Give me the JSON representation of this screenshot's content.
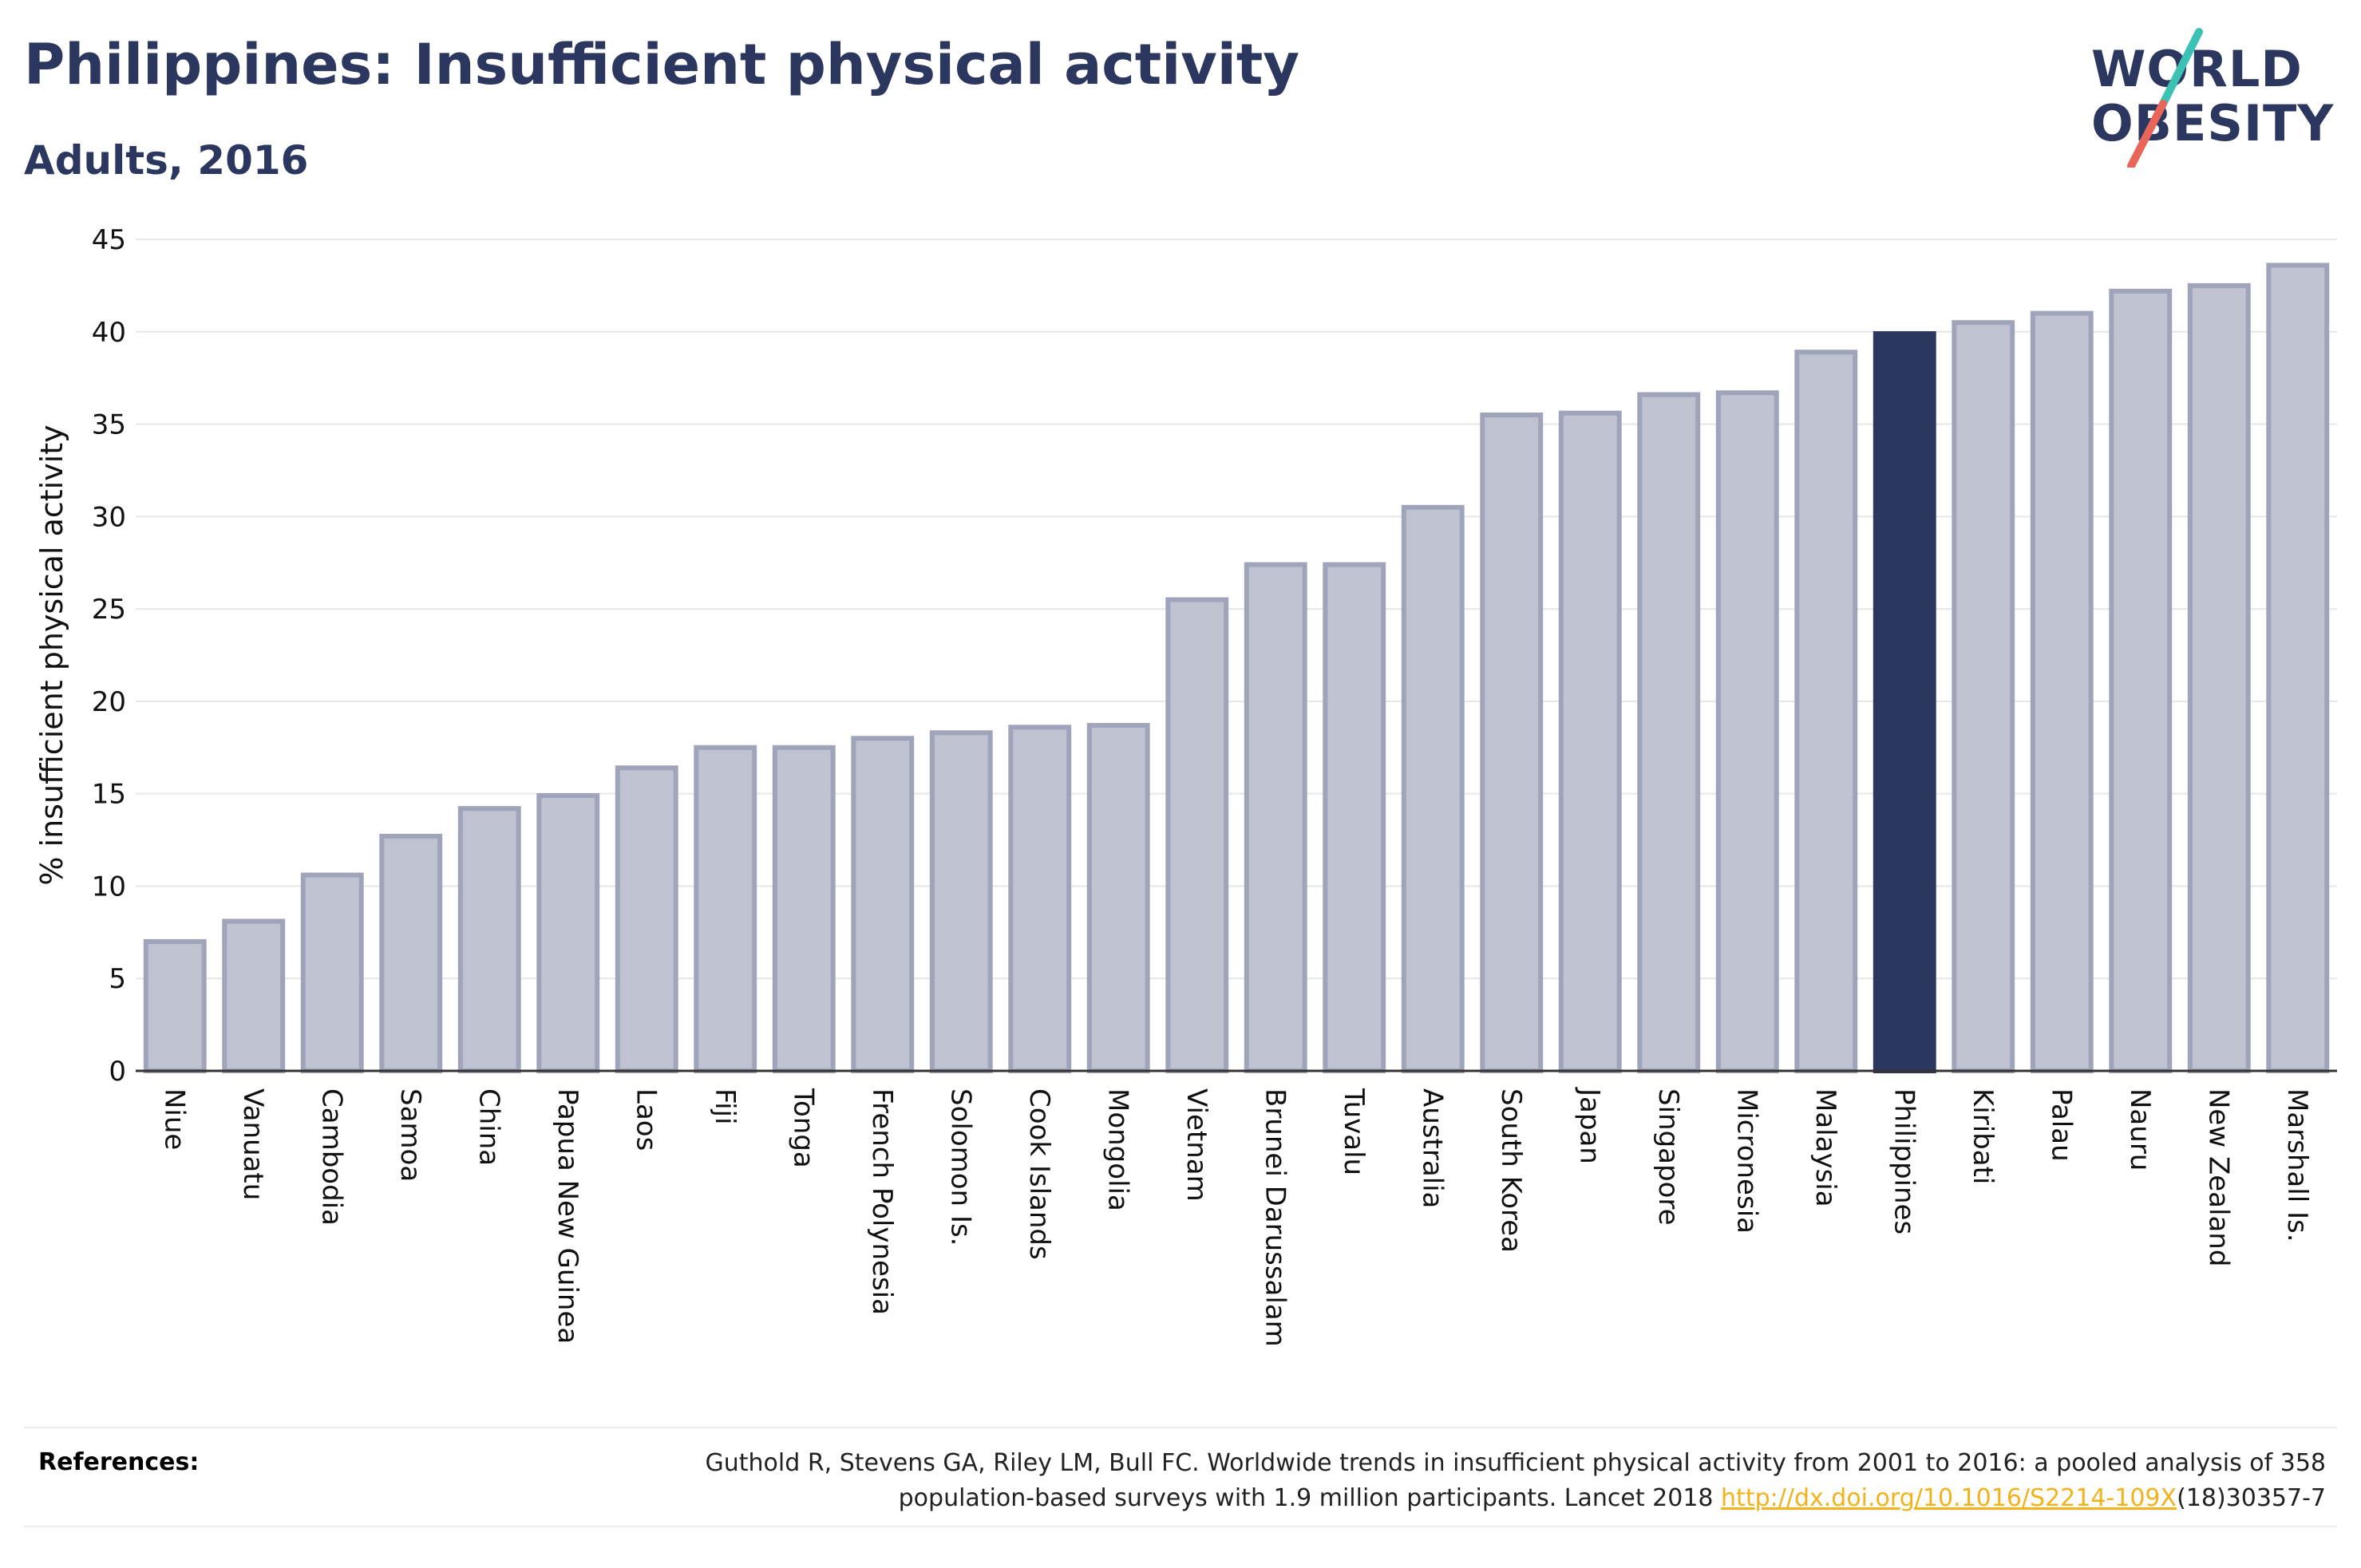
{
  "header": {
    "title": "Philippines: Insufficient physical activity",
    "subtitle": "Adults, 2016"
  },
  "logo": {
    "line1": "WORLD",
    "line2": "OBESITY",
    "slash_colors": [
      "#3cc1b5",
      "#e8655a"
    ]
  },
  "chart_data": {
    "type": "bar",
    "title": "Philippines: Insufficient physical activity",
    "subtitle": "Adults, 2016",
    "xlabel": "",
    "ylabel": "% insufficient physical activity",
    "ylim": [
      0,
      45
    ],
    "yticks": [
      0,
      5,
      10,
      15,
      20,
      25,
      30,
      35,
      40,
      45
    ],
    "grid": true,
    "highlight": "Philippines",
    "colors": {
      "bar": "#bfc2d0",
      "bar_edge": "#9fa4ba",
      "highlight": "#2b375f",
      "axis": "#333333",
      "grid": "#e6e6e6"
    },
    "categories": [
      "Niue",
      "Vanuatu",
      "Cambodia",
      "Samoa",
      "China",
      "Papua New Guinea",
      "Laos",
      "Fiji",
      "Tonga",
      "French Polynesia",
      "Solomon Is.",
      "Cook Islands",
      "Mongolia",
      "Vietnam",
      "Brunei Darussalam",
      "Tuvalu",
      "Australia",
      "South Korea",
      "Japan",
      "Singapore",
      "Micronesia",
      "Malaysia",
      "Philippines",
      "Kiribati",
      "Palau",
      "Nauru",
      "New Zealand",
      "Marshall Is."
    ],
    "values": [
      7.0,
      8.1,
      10.6,
      12.7,
      14.2,
      14.9,
      16.4,
      17.5,
      17.5,
      18.0,
      18.3,
      18.6,
      18.7,
      25.5,
      27.4,
      27.4,
      30.5,
      35.5,
      35.6,
      36.6,
      36.7,
      38.9,
      39.9,
      40.5,
      41.0,
      42.2,
      42.5,
      43.6
    ]
  },
  "references": {
    "label": "References:",
    "text_before": "Guthold R, Stevens GA, Riley LM, Bull FC. Worldwide trends in insufficient physical activity from 2001 to 2016: a pooled analysis of 358 population-based surveys with 1.9 million participants. Lancet 2018 ",
    "link": "http://dx.doi.org/10.1016/S2214-109X",
    "text_after": "(18)30357-7"
  }
}
